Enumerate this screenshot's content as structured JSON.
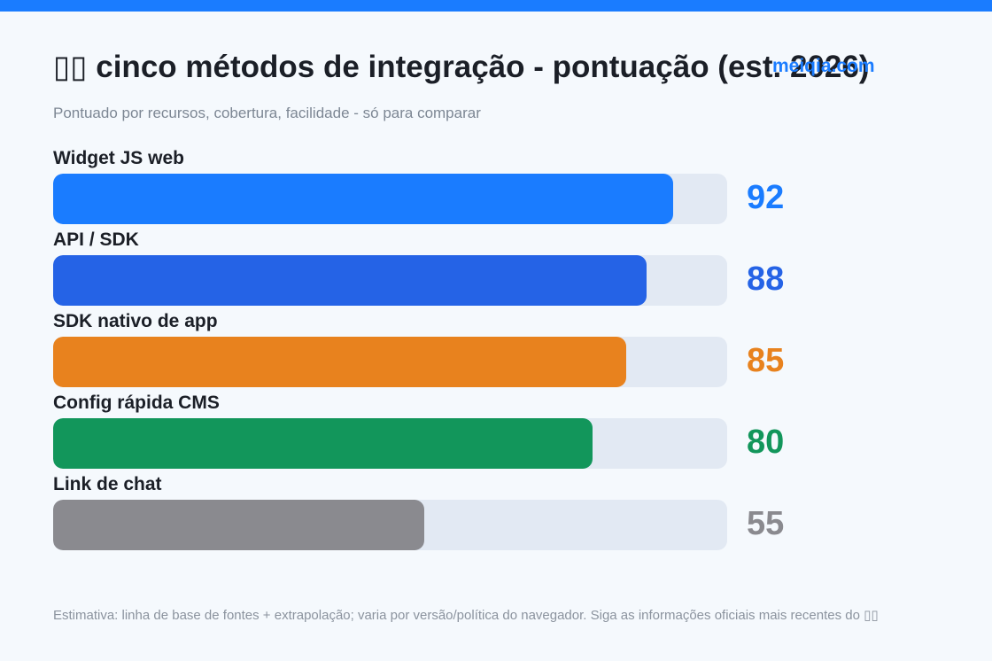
{
  "header": {
    "title": "▯▯ cinco métodos de integração - pontuação (est. 2026)",
    "watermark": "meiqia.com",
    "subtitle": "Pontuado por recursos, cobertura, facilidade - só para comparar"
  },
  "chart_data": {
    "type": "bar",
    "orientation": "horizontal",
    "title": "▯▯ cinco métodos de integração - pontuação (est. 2026)",
    "subtitle": "Pontuado por recursos, cobertura, facilidade - só para comparar",
    "categories": [
      "Widget JS web",
      "API / SDK",
      "SDK nativo de app",
      "Config rápida CMS",
      "Link de chat"
    ],
    "values": [
      92,
      88,
      85,
      80,
      55
    ],
    "colors": [
      "#1a7cff",
      "#2563e6",
      "#e8821e",
      "#12965b",
      "#8a8a8f"
    ],
    "xlim": [
      0,
      100
    ],
    "grid": false,
    "legend": "none"
  },
  "footer": {
    "note": "Estimativa: linha de base de fontes + extrapolação; varia por versão/política do navegador. Siga as informações oficiais mais recentes do ▯▯"
  },
  "style": {
    "accent": "#1a7cff",
    "track": "#e2e9f3",
    "background": "#f5f9fd"
  }
}
